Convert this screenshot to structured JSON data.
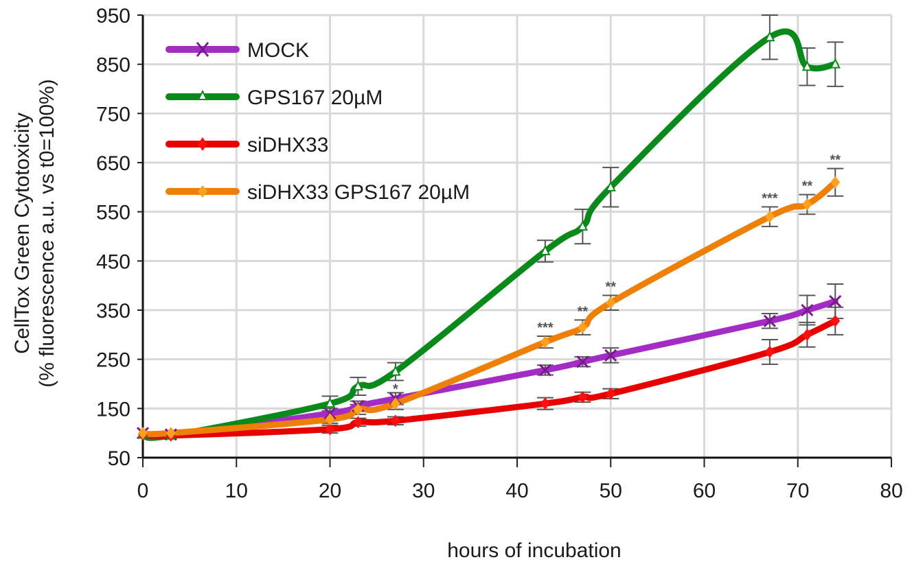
{
  "chart_data": {
    "type": "line",
    "title": "",
    "xlabel": "hours of incubation",
    "ylabel": "CellTox Green Cytotoxicity\n(% fluorescence a.u. vs t0=100%)",
    "ylabel_line1": "CellTox Green Cytotoxicity",
    "ylabel_line2": "(% fluorescence a.u. vs t0=100%)",
    "xlim": [
      0,
      80
    ],
    "ylim": [
      50,
      950
    ],
    "xticks": [
      0,
      10,
      20,
      30,
      40,
      50,
      60,
      70,
      80
    ],
    "yticks": [
      50,
      150,
      250,
      350,
      450,
      550,
      650,
      750,
      850,
      950
    ],
    "grid": true,
    "legend_position": "upper left",
    "x": [
      0,
      3,
      20,
      23,
      27,
      43,
      47,
      50,
      67,
      71,
      74
    ],
    "series": [
      {
        "name": "MOCK",
        "color": "#a32cc4",
        "marker": "x",
        "values": [
          100,
          97,
          140,
          155,
          170,
          228,
          245,
          258,
          328,
          350,
          368
        ],
        "errors": [
          5,
          5,
          10,
          10,
          12,
          10,
          10,
          15,
          15,
          30,
          35
        ]
      },
      {
        "name": "GPS167 20µM",
        "color": "#0a8a1a",
        "marker": "triangle",
        "values": [
          97,
          95,
          160,
          195,
          225,
          470,
          520,
          600,
          905,
          845,
          850
        ],
        "errors": [
          5,
          5,
          15,
          18,
          18,
          22,
          35,
          40,
          45,
          38,
          45
        ]
      },
      {
        "name": "siDHX33",
        "color": "#e60000",
        "marker": "diamond",
        "values": [
          97,
          95,
          108,
          122,
          125,
          160,
          173,
          180,
          265,
          300,
          328
        ],
        "errors": [
          5,
          5,
          8,
          8,
          8,
          12,
          10,
          10,
          25,
          25,
          28
        ]
      },
      {
        "name": "siDHX33 GPS167 20µM",
        "color": "#ee8008",
        "marker": "diamond",
        "values": [
          100,
          100,
          128,
          148,
          160,
          285,
          315,
          365,
          540,
          565,
          610
        ],
        "errors": [
          5,
          5,
          8,
          10,
          12,
          12,
          15,
          15,
          20,
          20,
          28
        ]
      }
    ],
    "annotations": [
      {
        "x": 27,
        "series": "siDHX33 GPS167 20µM",
        "text": "*"
      },
      {
        "x": 43,
        "series": "siDHX33 GPS167 20µM",
        "text": "***"
      },
      {
        "x": 47,
        "series": "siDHX33 GPS167 20µM",
        "text": "**"
      },
      {
        "x": 50,
        "series": "siDHX33 GPS167 20µM",
        "text": "**"
      },
      {
        "x": 67,
        "series": "siDHX33 GPS167 20µM",
        "text": "***"
      },
      {
        "x": 71,
        "series": "siDHX33 GPS167 20µM",
        "text": "**"
      },
      {
        "x": 74,
        "series": "siDHX33 GPS167 20µM",
        "text": "**"
      }
    ]
  },
  "axes": {
    "xlabel": "hours of incubation",
    "ylabel_line1": "CellTox Green Cytotoxicity",
    "ylabel_line2": "(% fluorescence a.u. vs t0=100%)"
  },
  "legend": [
    {
      "label": "MOCK",
      "color": "#a32cc4",
      "marker": "x-icon"
    },
    {
      "label": "GPS167 20µM",
      "color": "#0a8a1a",
      "marker": "triangle-icon"
    },
    {
      "label": "siDHX33",
      "color": "#e60000",
      "marker": "diamond-icon"
    },
    {
      "label": "siDHX33 GPS167 20µM",
      "color": "#ee8008",
      "marker": "diamond-icon"
    }
  ]
}
